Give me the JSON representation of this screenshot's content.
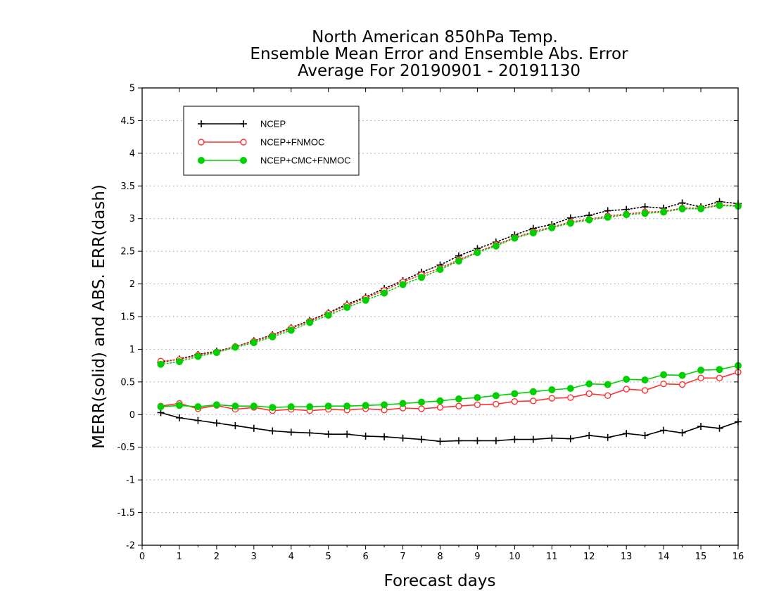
{
  "chart_data": {
    "type": "line",
    "title_lines": [
      "North American 850hPa Temp.",
      "Ensemble Mean Error and Ensemble Abs. Error",
      "Average For 20190901 - 20191130"
    ],
    "xlabel": "Forecast days",
    "ylabel": "MERR(solid) and ABS. ERR(dash)",
    "xlim": [
      0,
      16
    ],
    "ylim": [
      -2,
      5
    ],
    "x_ticks": [
      0,
      1,
      2,
      3,
      4,
      5,
      6,
      7,
      8,
      9,
      10,
      11,
      12,
      13,
      14,
      15,
      16
    ],
    "y_ticks": [
      -2,
      -1.5,
      -1,
      -0.5,
      0,
      0.5,
      1,
      1.5,
      2,
      2.5,
      3,
      3.5,
      4,
      4.5,
      5
    ],
    "y_tick_labels": [
      "-2",
      "-1.5",
      "-1",
      "-0.5",
      "0",
      "0.5",
      "1",
      "1.5",
      "2",
      "2.5",
      "3",
      "3.5",
      "4",
      "4.5",
      "5"
    ],
    "grid": "horizontal-dotted",
    "legend_position": "top-left",
    "x": [
      0.5,
      1,
      1.5,
      2,
      2.5,
      3,
      3.5,
      4,
      4.5,
      5,
      5.5,
      6,
      6.5,
      7,
      7.5,
      8,
      8.5,
      9,
      9.5,
      10,
      10.5,
      11,
      11.5,
      12,
      12.5,
      13,
      13.5,
      14,
      14.5,
      15,
      15.5,
      16
    ],
    "series": [
      {
        "name": "NCEP",
        "color": "#000000",
        "marker": "plus",
        "merr": [
          0.03,
          -0.05,
          -0.09,
          -0.13,
          -0.17,
          -0.21,
          -0.25,
          -0.27,
          -0.28,
          -0.3,
          -0.3,
          -0.33,
          -0.34,
          -0.36,
          -0.38,
          -0.41,
          -0.4,
          -0.4,
          -0.4,
          -0.38,
          -0.38,
          -0.36,
          -0.37,
          -0.32,
          -0.35,
          -0.29,
          -0.32,
          -0.24,
          -0.28,
          -0.18,
          -0.21,
          -0.11
        ],
        "abs_err": [
          0.8,
          0.85,
          0.92,
          0.97,
          1.04,
          1.13,
          1.22,
          1.33,
          1.44,
          1.56,
          1.69,
          1.8,
          1.93,
          2.05,
          2.18,
          2.29,
          2.43,
          2.54,
          2.64,
          2.75,
          2.85,
          2.91,
          3.01,
          3.05,
          3.12,
          3.14,
          3.18,
          3.16,
          3.24,
          3.18,
          3.26,
          3.23
        ]
      },
      {
        "name": "NCEP+FNMOC",
        "color": "#ff3030",
        "marker": "open-circle",
        "merr": [
          0.13,
          0.17,
          0.09,
          0.14,
          0.08,
          0.11,
          0.06,
          0.08,
          0.06,
          0.08,
          0.07,
          0.09,
          0.07,
          0.1,
          0.09,
          0.11,
          0.13,
          0.15,
          0.16,
          0.2,
          0.21,
          0.25,
          0.26,
          0.32,
          0.29,
          0.39,
          0.37,
          0.47,
          0.46,
          0.56,
          0.56,
          0.65
        ],
        "abs_err": [
          0.82,
          0.84,
          0.91,
          0.96,
          1.04,
          1.12,
          1.21,
          1.32,
          1.43,
          1.55,
          1.67,
          1.78,
          1.9,
          2.03,
          2.14,
          2.24,
          2.37,
          2.49,
          2.6,
          2.71,
          2.8,
          2.87,
          2.95,
          2.99,
          3.04,
          3.07,
          3.1,
          3.11,
          3.16,
          3.16,
          3.21,
          3.2
        ]
      },
      {
        "name": "NCEP+CMC+FNMOC",
        "color": "#00d000",
        "marker": "filled-circle",
        "merr": [
          0.12,
          0.14,
          0.12,
          0.15,
          0.13,
          0.13,
          0.11,
          0.12,
          0.12,
          0.13,
          0.13,
          0.14,
          0.15,
          0.17,
          0.19,
          0.21,
          0.24,
          0.26,
          0.29,
          0.32,
          0.35,
          0.38,
          0.4,
          0.47,
          0.46,
          0.54,
          0.53,
          0.61,
          0.6,
          0.68,
          0.69,
          0.75
        ],
        "abs_err": [
          0.77,
          0.81,
          0.89,
          0.95,
          1.03,
          1.1,
          1.19,
          1.29,
          1.41,
          1.52,
          1.64,
          1.75,
          1.86,
          1.99,
          2.1,
          2.22,
          2.35,
          2.48,
          2.58,
          2.7,
          2.78,
          2.86,
          2.93,
          2.98,
          3.02,
          3.06,
          3.08,
          3.1,
          3.15,
          3.15,
          3.2,
          3.19
        ]
      }
    ]
  }
}
